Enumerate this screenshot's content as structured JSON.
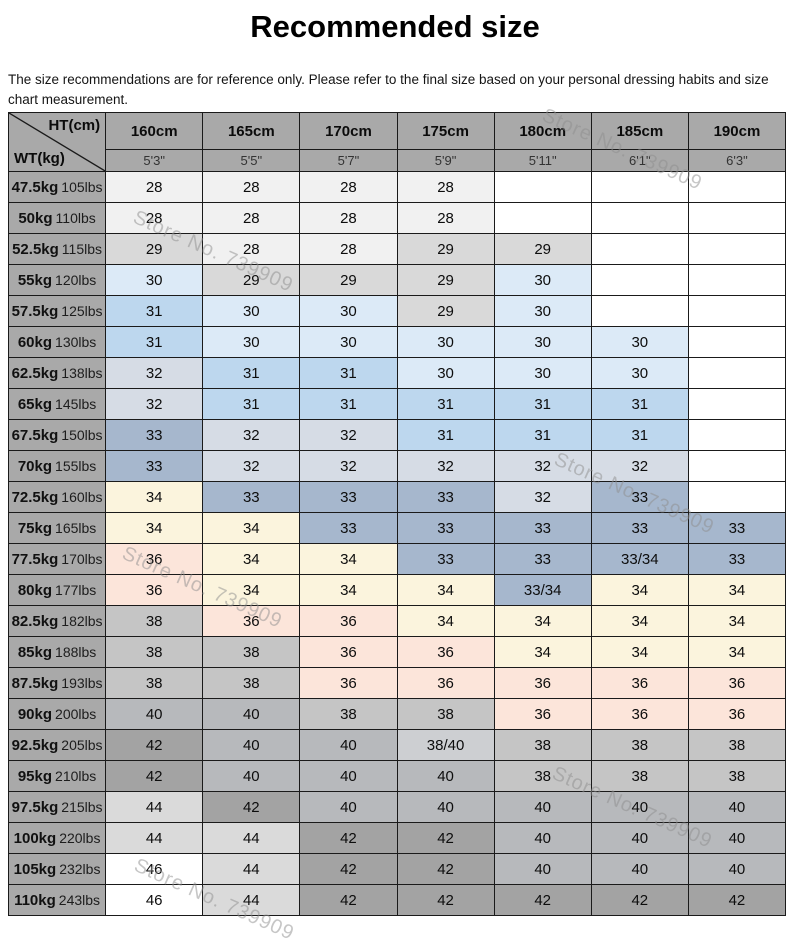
{
  "title": "Recommended size",
  "disclaimer": "The size recommendations are for reference only. Please refer to the final size based on your personal dressing habits and size chart measurement.",
  "watermark": {
    "text": "Store No. 739909"
  },
  "colors": {
    "header_bg": "#a9a9a9",
    "grid_border": "#1a1a1a",
    "size_cell_colors": {
      "28": "#f1f1f1",
      "29": "#d9d9d9",
      "30": "#dceaf7",
      "31": "#bdd7ee",
      "32": "#d6dce5",
      "33": "#a6b7cd",
      "33/34": "#a6b7cd",
      "34": "#fbf4dd",
      "36": "#fce5da",
      "38": "#c5c5c5",
      "38/40": "#cdcfd2",
      "40": "#b7b9bc",
      "42": "#a3a3a3",
      "44": "#dadada",
      "46": "#ffffff"
    }
  },
  "chart_data": {
    "type": "table",
    "title": "Recommended size",
    "corner_top_right": "HT(cm)",
    "corner_bottom_left": "WT(kg)",
    "columns_height_cm": [
      "160cm",
      "165cm",
      "170cm",
      "175cm",
      "180cm",
      "185cm",
      "190cm"
    ],
    "columns_height_ft": [
      "5'3\"",
      "5'5\"",
      "5'7\"",
      "5'9\"",
      "5'11\"",
      "6'1\"",
      "6'3\""
    ],
    "rows": [
      {
        "weight_kg": "47.5kg",
        "weight_lbs": "105lbs",
        "sizes": [
          "28",
          "28",
          "28",
          "28",
          "",
          "",
          ""
        ]
      },
      {
        "weight_kg": "50kg",
        "weight_lbs": "110lbs",
        "sizes": [
          "28",
          "28",
          "28",
          "28",
          "",
          "",
          ""
        ]
      },
      {
        "weight_kg": "52.5kg",
        "weight_lbs": "115lbs",
        "sizes": [
          "29",
          "28",
          "28",
          "29",
          "29",
          "",
          ""
        ]
      },
      {
        "weight_kg": "55kg",
        "weight_lbs": "120lbs",
        "sizes": [
          "30",
          "29",
          "29",
          "29",
          "30",
          "",
          ""
        ]
      },
      {
        "weight_kg": "57.5kg",
        "weight_lbs": "125lbs",
        "sizes": [
          "31",
          "30",
          "30",
          "29",
          "30",
          "",
          ""
        ]
      },
      {
        "weight_kg": "60kg",
        "weight_lbs": "130lbs",
        "sizes": [
          "31",
          "30",
          "30",
          "30",
          "30",
          "30",
          ""
        ]
      },
      {
        "weight_kg": "62.5kg",
        "weight_lbs": "138lbs",
        "sizes": [
          "32",
          "31",
          "31",
          "30",
          "30",
          "30",
          ""
        ]
      },
      {
        "weight_kg": "65kg",
        "weight_lbs": "145lbs",
        "sizes": [
          "32",
          "31",
          "31",
          "31",
          "31",
          "31",
          ""
        ]
      },
      {
        "weight_kg": "67.5kg",
        "weight_lbs": "150lbs",
        "sizes": [
          "33",
          "32",
          "32",
          "31",
          "31",
          "31",
          ""
        ]
      },
      {
        "weight_kg": "70kg",
        "weight_lbs": "155lbs",
        "sizes": [
          "33",
          "32",
          "32",
          "32",
          "32",
          "32",
          ""
        ]
      },
      {
        "weight_kg": "72.5kg",
        "weight_lbs": "160lbs",
        "sizes": [
          "34",
          "33",
          "33",
          "33",
          "32",
          "33",
          ""
        ]
      },
      {
        "weight_kg": "75kg",
        "weight_lbs": "165lbs",
        "sizes": [
          "34",
          "34",
          "33",
          "33",
          "33",
          "33",
          "33"
        ]
      },
      {
        "weight_kg": "77.5kg",
        "weight_lbs": "170lbs",
        "sizes": [
          "36",
          "34",
          "34",
          "33",
          "33",
          "33/34",
          "33"
        ]
      },
      {
        "weight_kg": "80kg",
        "weight_lbs": "177lbs",
        "sizes": [
          "36",
          "34",
          "34",
          "34",
          "33/34",
          "34",
          "34"
        ]
      },
      {
        "weight_kg": "82.5kg",
        "weight_lbs": "182lbs",
        "sizes": [
          "38",
          "36",
          "36",
          "34",
          "34",
          "34",
          "34"
        ]
      },
      {
        "weight_kg": "85kg",
        "weight_lbs": "188lbs",
        "sizes": [
          "38",
          "38",
          "36",
          "36",
          "34",
          "34",
          "34"
        ]
      },
      {
        "weight_kg": "87.5kg",
        "weight_lbs": "193lbs",
        "sizes": [
          "38",
          "38",
          "36",
          "36",
          "36",
          "36",
          "36"
        ]
      },
      {
        "weight_kg": "90kg",
        "weight_lbs": "200lbs",
        "sizes": [
          "40",
          "40",
          "38",
          "38",
          "36",
          "36",
          "36"
        ]
      },
      {
        "weight_kg": "92.5kg",
        "weight_lbs": "205lbs",
        "sizes": [
          "42",
          "40",
          "40",
          "38/40",
          "38",
          "38",
          "38"
        ]
      },
      {
        "weight_kg": "95kg",
        "weight_lbs": "210lbs",
        "sizes": [
          "42",
          "40",
          "40",
          "40",
          "38",
          "38",
          "38"
        ]
      },
      {
        "weight_kg": "97.5kg",
        "weight_lbs": "215lbs",
        "sizes": [
          "44",
          "42",
          "40",
          "40",
          "40",
          "40",
          "40"
        ]
      },
      {
        "weight_kg": "100kg",
        "weight_lbs": "220lbs",
        "sizes": [
          "44",
          "44",
          "42",
          "42",
          "40",
          "40",
          "40"
        ]
      },
      {
        "weight_kg": "105kg",
        "weight_lbs": "232lbs",
        "sizes": [
          "46",
          "44",
          "42",
          "42",
          "40",
          "40",
          "40"
        ]
      },
      {
        "weight_kg": "110kg",
        "weight_lbs": "243lbs",
        "sizes": [
          "46",
          "44",
          "42",
          "42",
          "42",
          "42",
          "42"
        ]
      }
    ]
  }
}
